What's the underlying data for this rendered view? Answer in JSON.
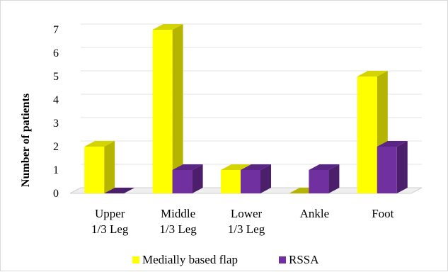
{
  "chart_data": {
    "type": "bar",
    "categories": [
      "Upper\n1/3 Leg",
      "Middle\n1/3 Leg",
      "Lower\n1/3 Leg",
      "Ankle",
      "Foot"
    ],
    "series": [
      {
        "name": "Medially based flap",
        "values": [
          2,
          7,
          1,
          0,
          5
        ]
      },
      {
        "name": "RSSA",
        "values": [
          0,
          1,
          1,
          1,
          2
        ]
      }
    ],
    "ylabel": "Number of patients",
    "xlabel": "",
    "ylim": [
      0,
      7
    ],
    "yticks": [
      0,
      1,
      2,
      3,
      4,
      5,
      6,
      7
    ],
    "grid": true,
    "legend_position": "bottom",
    "bar_style": "3d",
    "colors": {
      "series": [
        {
          "front": "#ffff00",
          "side": "#b5b500",
          "top": "#d4d400"
        },
        {
          "front": "#7030a0",
          "side": "#4b1f6c",
          "top": "#5b2585"
        }
      ],
      "grid": "#e3e3e3",
      "floor": "#d0d0d0",
      "text": "#000000"
    }
  }
}
